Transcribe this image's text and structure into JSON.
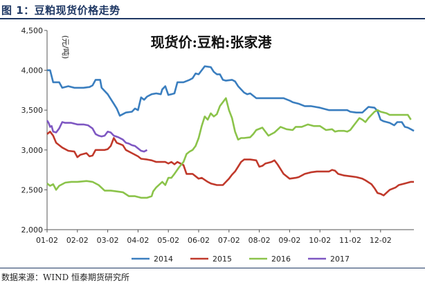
{
  "figure": {
    "title": "图 1：豆粕现货价格走势",
    "source": "数据来源：WIND 恒泰期货研究所"
  },
  "chart_data": {
    "type": "line",
    "title": "现货价:豆粕:张家港",
    "ylabel": "(元/吨)",
    "xlabel": "",
    "ylim": [
      2000,
      4500
    ],
    "yticks": [
      2000,
      2500,
      3000,
      3500,
      4000,
      4500
    ],
    "ytick_labels": [
      "2,000",
      "2,500",
      "3,000",
      "3,500",
      "4,000",
      "4,500"
    ],
    "xticks": [
      "01-02",
      "02-02",
      "03-02",
      "04-02",
      "05-02",
      "06-02",
      "07-02",
      "08-02",
      "09-02",
      "10-02",
      "11-02",
      "12-02"
    ],
    "grid": false,
    "legend_position": "bottom",
    "series": [
      {
        "name": "2014",
        "color": "#3a7ebf",
        "points": [
          [
            0.0,
            4000
          ],
          [
            0.1,
            4000
          ],
          [
            0.2,
            3850
          ],
          [
            0.4,
            3850
          ],
          [
            0.5,
            3780
          ],
          [
            0.7,
            3800
          ],
          [
            0.9,
            3780
          ],
          [
            1.2,
            3780
          ],
          [
            1.4,
            3790
          ],
          [
            1.5,
            3810
          ],
          [
            1.6,
            3880
          ],
          [
            1.75,
            3880
          ],
          [
            1.8,
            3780
          ],
          [
            2.0,
            3700
          ],
          [
            2.2,
            3580
          ],
          [
            2.3,
            3520
          ],
          [
            2.4,
            3430
          ],
          [
            2.6,
            3470
          ],
          [
            2.8,
            3480
          ],
          [
            2.9,
            3520
          ],
          [
            3.0,
            3500
          ],
          [
            3.1,
            3660
          ],
          [
            3.2,
            3630
          ],
          [
            3.3,
            3670
          ],
          [
            3.45,
            3700
          ],
          [
            3.6,
            3710
          ],
          [
            3.75,
            3700
          ],
          [
            3.8,
            3760
          ],
          [
            3.9,
            3800
          ],
          [
            4.0,
            3690
          ],
          [
            4.1,
            3700
          ],
          [
            4.2,
            3710
          ],
          [
            4.3,
            3850
          ],
          [
            4.5,
            3850
          ],
          [
            4.7,
            3880
          ],
          [
            4.8,
            3900
          ],
          [
            4.9,
            3960
          ],
          [
            5.0,
            3950
          ],
          [
            5.1,
            4000
          ],
          [
            5.2,
            4050
          ],
          [
            5.4,
            4040
          ],
          [
            5.5,
            3980
          ],
          [
            5.6,
            3950
          ],
          [
            5.7,
            3950
          ],
          [
            5.8,
            3880
          ],
          [
            5.9,
            3870
          ],
          [
            6.1,
            3880
          ],
          [
            6.2,
            3860
          ],
          [
            6.3,
            3800
          ],
          [
            6.5,
            3720
          ],
          [
            6.6,
            3700
          ],
          [
            6.7,
            3710
          ],
          [
            6.9,
            3650
          ],
          [
            7.2,
            3650
          ],
          [
            7.5,
            3650
          ],
          [
            7.8,
            3650
          ],
          [
            8.0,
            3620
          ],
          [
            8.1,
            3600
          ],
          [
            8.3,
            3580
          ],
          [
            8.5,
            3550
          ],
          [
            8.7,
            3550
          ],
          [
            9.0,
            3530
          ],
          [
            9.3,
            3500
          ],
          [
            9.6,
            3500
          ],
          [
            9.9,
            3500
          ],
          [
            10.0,
            3480
          ],
          [
            10.2,
            3470
          ],
          [
            10.4,
            3470
          ],
          [
            10.6,
            3540
          ],
          [
            10.8,
            3530
          ],
          [
            10.9,
            3490
          ],
          [
            11.0,
            3380
          ],
          [
            11.1,
            3360
          ],
          [
            11.3,
            3340
          ],
          [
            11.45,
            3310
          ],
          [
            11.55,
            3350
          ],
          [
            11.7,
            3350
          ],
          [
            11.8,
            3290
          ],
          [
            11.9,
            3280
          ],
          [
            12.0,
            3260
          ],
          [
            12.1,
            3240
          ]
        ]
      },
      {
        "name": "2015",
        "color": "#c0392b",
        "points": [
          [
            0.0,
            3200
          ],
          [
            0.1,
            3230
          ],
          [
            0.2,
            3180
          ],
          [
            0.3,
            3090
          ],
          [
            0.4,
            3060
          ],
          [
            0.5,
            3030
          ],
          [
            0.7,
            2990
          ],
          [
            0.9,
            2980
          ],
          [
            1.0,
            2910
          ],
          [
            1.1,
            2940
          ],
          [
            1.3,
            2960
          ],
          [
            1.4,
            2920
          ],
          [
            1.5,
            2930
          ],
          [
            1.6,
            3000
          ],
          [
            1.75,
            3000
          ],
          [
            1.9,
            3000
          ],
          [
            2.0,
            3010
          ],
          [
            2.1,
            3050
          ],
          [
            2.2,
            3150
          ],
          [
            2.3,
            3090
          ],
          [
            2.5,
            3060
          ],
          [
            2.6,
            3000
          ],
          [
            2.8,
            2960
          ],
          [
            3.0,
            2920
          ],
          [
            3.1,
            2890
          ],
          [
            3.3,
            2880
          ],
          [
            3.45,
            2870
          ],
          [
            3.6,
            2850
          ],
          [
            3.8,
            2850
          ],
          [
            3.9,
            2850
          ],
          [
            4.0,
            2830
          ],
          [
            4.1,
            2850
          ],
          [
            4.2,
            2820
          ],
          [
            4.3,
            2850
          ],
          [
            4.5,
            2810
          ],
          [
            4.6,
            2700
          ],
          [
            4.8,
            2700
          ],
          [
            4.9,
            2670
          ],
          [
            5.0,
            2640
          ],
          [
            5.1,
            2650
          ],
          [
            5.3,
            2600
          ],
          [
            5.4,
            2580
          ],
          [
            5.6,
            2560
          ],
          [
            5.8,
            2560
          ],
          [
            5.9,
            2600
          ],
          [
            6.0,
            2640
          ],
          [
            6.1,
            2690
          ],
          [
            6.2,
            2730
          ],
          [
            6.3,
            2790
          ],
          [
            6.4,
            2850
          ],
          [
            6.5,
            2880
          ],
          [
            6.7,
            2880
          ],
          [
            6.9,
            2870
          ],
          [
            7.0,
            2790
          ],
          [
            7.1,
            2800
          ],
          [
            7.2,
            2830
          ],
          [
            7.3,
            2840
          ],
          [
            7.4,
            2850
          ],
          [
            7.5,
            2870
          ],
          [
            7.6,
            2820
          ],
          [
            7.7,
            2760
          ],
          [
            7.8,
            2700
          ],
          [
            8.0,
            2640
          ],
          [
            8.2,
            2650
          ],
          [
            8.3,
            2660
          ],
          [
            8.5,
            2700
          ],
          [
            8.7,
            2720
          ],
          [
            8.9,
            2730
          ],
          [
            9.1,
            2730
          ],
          [
            9.3,
            2730
          ],
          [
            9.4,
            2750
          ],
          [
            9.5,
            2740
          ],
          [
            9.6,
            2700
          ],
          [
            9.8,
            2680
          ],
          [
            10.0,
            2670
          ],
          [
            10.2,
            2660
          ],
          [
            10.4,
            2640
          ],
          [
            10.5,
            2620
          ],
          [
            10.7,
            2570
          ],
          [
            10.8,
            2520
          ],
          [
            10.9,
            2460
          ],
          [
            11.0,
            2450
          ],
          [
            11.1,
            2430
          ],
          [
            11.3,
            2500
          ],
          [
            11.5,
            2530
          ],
          [
            11.6,
            2560
          ],
          [
            11.8,
            2580
          ],
          [
            12.0,
            2600
          ],
          [
            12.1,
            2600
          ]
        ]
      },
      {
        "name": "2016",
        "color": "#8bc34a",
        "points": [
          [
            0.0,
            2580
          ],
          [
            0.1,
            2550
          ],
          [
            0.2,
            2570
          ],
          [
            0.3,
            2500
          ],
          [
            0.4,
            2550
          ],
          [
            0.6,
            2590
          ],
          [
            0.8,
            2600
          ],
          [
            1.0,
            2600
          ],
          [
            1.3,
            2610
          ],
          [
            1.5,
            2600
          ],
          [
            1.7,
            2560
          ],
          [
            1.9,
            2490
          ],
          [
            2.1,
            2490
          ],
          [
            2.3,
            2480
          ],
          [
            2.5,
            2470
          ],
          [
            2.7,
            2420
          ],
          [
            2.9,
            2420
          ],
          [
            3.1,
            2400
          ],
          [
            3.3,
            2400
          ],
          [
            3.45,
            2420
          ],
          [
            3.5,
            2480
          ],
          [
            3.6,
            2530
          ],
          [
            3.8,
            2600
          ],
          [
            3.9,
            2560
          ],
          [
            4.0,
            2650
          ],
          [
            4.1,
            2650
          ],
          [
            4.2,
            2700
          ],
          [
            4.35,
            2780
          ],
          [
            4.5,
            2850
          ],
          [
            4.6,
            2950
          ],
          [
            4.7,
            2980
          ],
          [
            4.8,
            3000
          ],
          [
            4.9,
            3050
          ],
          [
            5.0,
            3150
          ],
          [
            5.1,
            3300
          ],
          [
            5.2,
            3420
          ],
          [
            5.3,
            3380
          ],
          [
            5.4,
            3460
          ],
          [
            5.5,
            3420
          ],
          [
            5.6,
            3450
          ],
          [
            5.7,
            3550
          ],
          [
            5.8,
            3600
          ],
          [
            5.9,
            3650
          ],
          [
            6.0,
            3500
          ],
          [
            6.1,
            3400
          ],
          [
            6.2,
            3230
          ],
          [
            6.3,
            3130
          ],
          [
            6.4,
            3150
          ],
          [
            6.5,
            3150
          ],
          [
            6.7,
            3160
          ],
          [
            6.8,
            3200
          ],
          [
            6.9,
            3250
          ],
          [
            7.1,
            3280
          ],
          [
            7.3,
            3180
          ],
          [
            7.5,
            3220
          ],
          [
            7.7,
            3290
          ],
          [
            7.9,
            3260
          ],
          [
            8.1,
            3250
          ],
          [
            8.2,
            3290
          ],
          [
            8.4,
            3290
          ],
          [
            8.6,
            3320
          ],
          [
            8.8,
            3300
          ],
          [
            9.0,
            3300
          ],
          [
            9.2,
            3250
          ],
          [
            9.4,
            3260
          ],
          [
            9.5,
            3230
          ],
          [
            9.6,
            3240
          ],
          [
            9.8,
            3240
          ],
          [
            9.9,
            3230
          ],
          [
            10.0,
            3250
          ],
          [
            10.1,
            3300
          ],
          [
            10.2,
            3350
          ],
          [
            10.3,
            3400
          ],
          [
            10.4,
            3380
          ],
          [
            10.5,
            3350
          ],
          [
            10.6,
            3400
          ],
          [
            10.8,
            3480
          ],
          [
            10.9,
            3500
          ],
          [
            11.0,
            3480
          ],
          [
            11.2,
            3460
          ],
          [
            11.3,
            3440
          ],
          [
            11.5,
            3440
          ],
          [
            11.7,
            3440
          ],
          [
            11.9,
            3440
          ],
          [
            12.0,
            3380
          ]
        ]
      },
      {
        "name": "2017",
        "color": "#7e57c2",
        "points": [
          [
            0.0,
            3370
          ],
          [
            0.05,
            3340
          ],
          [
            0.1,
            3290
          ],
          [
            0.15,
            3300
          ],
          [
            0.2,
            3230
          ],
          [
            0.3,
            3220
          ],
          [
            0.4,
            3270
          ],
          [
            0.5,
            3350
          ],
          [
            0.6,
            3340
          ],
          [
            0.8,
            3340
          ],
          [
            1.0,
            3320
          ],
          [
            1.2,
            3320
          ],
          [
            1.35,
            3310
          ],
          [
            1.5,
            3270
          ],
          [
            1.6,
            3200
          ],
          [
            1.7,
            3180
          ],
          [
            1.8,
            3170
          ],
          [
            1.9,
            3180
          ],
          [
            2.0,
            3230
          ],
          [
            2.1,
            3220
          ],
          [
            2.2,
            3180
          ],
          [
            2.35,
            3160
          ],
          [
            2.5,
            3130
          ],
          [
            2.6,
            3090
          ],
          [
            2.7,
            3080
          ],
          [
            2.8,
            3060
          ],
          [
            2.9,
            3050
          ],
          [
            3.0,
            3020
          ],
          [
            3.1,
            2990
          ],
          [
            3.2,
            2980
          ],
          [
            3.3,
            3000
          ]
        ]
      }
    ]
  }
}
